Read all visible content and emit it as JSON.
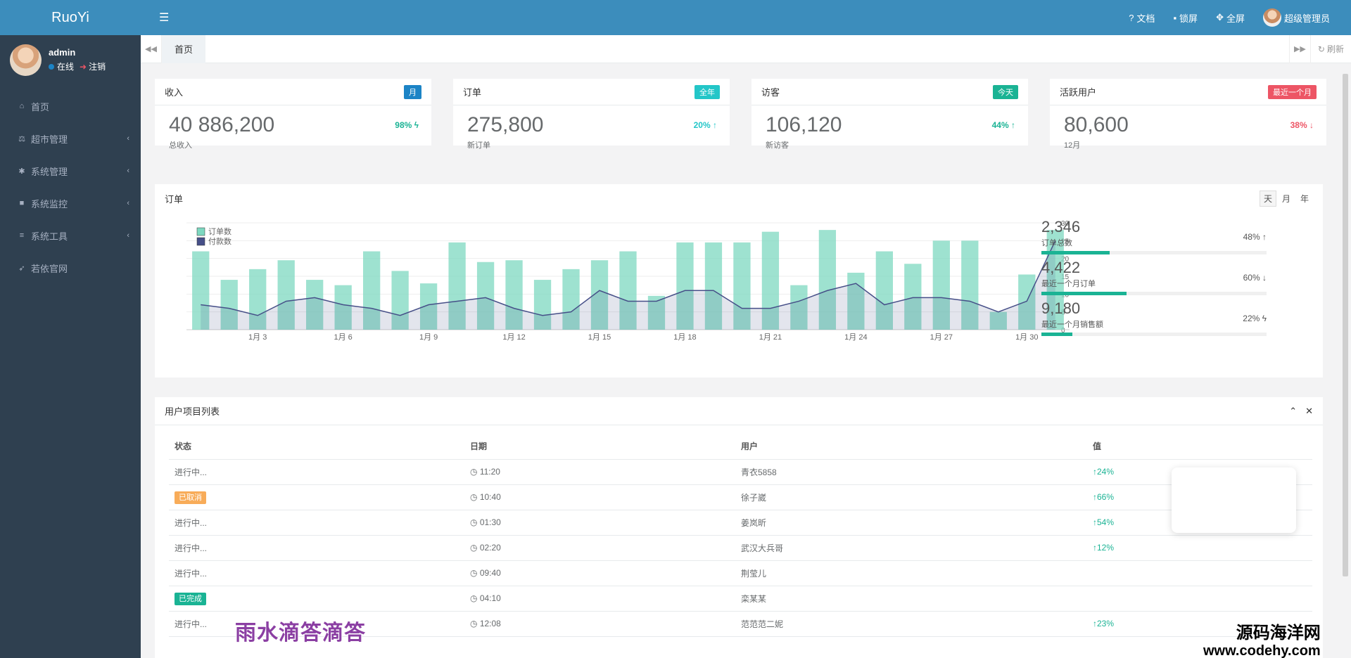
{
  "brand": "RuoYi",
  "user": {
    "name": "admin",
    "online": "在线",
    "logout": "注销"
  },
  "menu": [
    {
      "icon": "home-icon",
      "glyph": "⌂",
      "label": "首页",
      "arrow": false
    },
    {
      "icon": "scale-icon",
      "glyph": "⚖",
      "label": "超市管理",
      "arrow": true
    },
    {
      "icon": "gear-icon",
      "glyph": "✱",
      "label": "系统管理",
      "arrow": true
    },
    {
      "icon": "video-icon",
      "glyph": "■",
      "label": "系统监控",
      "arrow": true
    },
    {
      "icon": "list-icon",
      "glyph": "≡",
      "label": "系统工具",
      "arrow": true
    },
    {
      "icon": "send-icon",
      "glyph": "➶",
      "label": "若依官网",
      "arrow": false
    }
  ],
  "header": {
    "docs": "文档",
    "lock": "锁屏",
    "fullscreen": "全屏",
    "account": "超级管理员"
  },
  "tabs": {
    "home": "首页",
    "refresh": "刷新"
  },
  "stats": [
    {
      "title": "收入",
      "label": "月",
      "label_color": "#1c84c6",
      "value": "40 886,200",
      "sub": "总收入",
      "pct": "98%",
      "pct_color": "#1ab394",
      "arrow": "ϟ"
    },
    {
      "title": "订单",
      "label": "全年",
      "label_color": "#23c6c8",
      "value": "275,800",
      "sub": "新订单",
      "pct": "20%",
      "pct_color": "#23c6c8",
      "arrow": "↑"
    },
    {
      "title": "访客",
      "label": "今天",
      "label_color": "#1ab394",
      "value": "106,120",
      "sub": "新访客",
      "pct": "44%",
      "pct_color": "#1ab394",
      "arrow": "↑"
    },
    {
      "title": "活跃用户",
      "label": "最近一个月",
      "label_color": "#ed5565",
      "value": "80,600",
      "sub": "12月",
      "pct": "38%",
      "pct_color": "#ed5565",
      "arrow": "↓"
    }
  ],
  "order_panel": {
    "title": "订单",
    "ranges": [
      "天",
      "月",
      "年"
    ],
    "summary": [
      {
        "value": "2,346",
        "label": "订单总数",
        "fill": 0.48,
        "pct": "48%",
        "arrow": "↑"
      },
      {
        "value": "4,422",
        "label": "最近一个月订单",
        "fill": 0.6,
        "pct": "60%",
        "arrow": "↓"
      },
      {
        "value": "9,180",
        "label": "最近一个月销售额",
        "fill": 0.22,
        "pct": "22%",
        "arrow": "ϟ"
      }
    ]
  },
  "chart_data": {
    "type": "bar",
    "legend": [
      "订单数",
      "付款数"
    ],
    "x": [
      1,
      2,
      3,
      4,
      5,
      6,
      7,
      8,
      9,
      10,
      11,
      12,
      13,
      14,
      15,
      16,
      17,
      18,
      19,
      20,
      21,
      22,
      23,
      24,
      25,
      26,
      27,
      28,
      29,
      30,
      31
    ],
    "xtick_labels": {
      "3": "1月 3",
      "6": "1月 6",
      "9": "1月 9",
      "12": "1月 12",
      "15": "1月 15",
      "18": "1月 18",
      "21": "1月 21",
      "24": "1月 24",
      "27": "1月 27",
      "30": "1月 30"
    },
    "series": [
      {
        "name": "订单数",
        "type": "bar",
        "color": "#7dd8c0",
        "values": [
          22,
          14,
          17,
          19.5,
          14,
          12.5,
          22,
          16.5,
          13,
          24.5,
          19,
          19.5,
          14,
          17,
          19.5,
          22,
          9.5,
          24.5,
          24.5,
          24.5,
          27.5,
          12.5,
          28,
          16,
          22,
          18.5,
          25,
          25,
          5,
          15.5,
          28
        ]
      },
      {
        "name": "付款数",
        "type": "area",
        "color": "#464f88",
        "values": [
          7,
          6,
          4,
          8,
          9,
          7,
          6,
          4,
          7,
          8,
          9,
          6,
          4,
          5,
          11,
          8,
          8,
          11,
          11,
          6,
          6,
          8,
          11,
          13,
          7,
          9,
          9,
          8,
          5,
          8,
          25
        ]
      }
    ],
    "ylim": [
      0,
      30
    ],
    "yticks": [
      0,
      5,
      10,
      15,
      20,
      25,
      30
    ]
  },
  "table": {
    "title": "用户项目列表",
    "columns": [
      "状态",
      "日期",
      "用户",
      "值"
    ],
    "rows": [
      {
        "status": "进行中...",
        "badge": "",
        "date": "11:20",
        "user": "青衣5858",
        "value": "24%"
      },
      {
        "status": "已取消",
        "badge": "#f8ac59",
        "date": "10:40",
        "user": "徐子崴",
        "value": "66%"
      },
      {
        "status": "进行中...",
        "badge": "",
        "date": "01:30",
        "user": "姜岚昕",
        "value": "54%"
      },
      {
        "status": "进行中...",
        "badge": "",
        "date": "02:20",
        "user": "武汉大兵哥",
        "value": "12%"
      },
      {
        "status": "进行中...",
        "badge": "",
        "date": "09:40",
        "user": "荆莹儿",
        "value": ""
      },
      {
        "status": "已完成",
        "badge": "#1ab394",
        "date": "04:10",
        "user": "栾某某",
        "value": ""
      },
      {
        "status": "进行中...",
        "badge": "",
        "date": "12:08",
        "user": "范范范二妮",
        "value": "23%"
      }
    ]
  },
  "watermarks": {
    "left": "雨水滴答滴答",
    "right_cn": "源码海洋网",
    "right_url": "www.codehy.com"
  }
}
